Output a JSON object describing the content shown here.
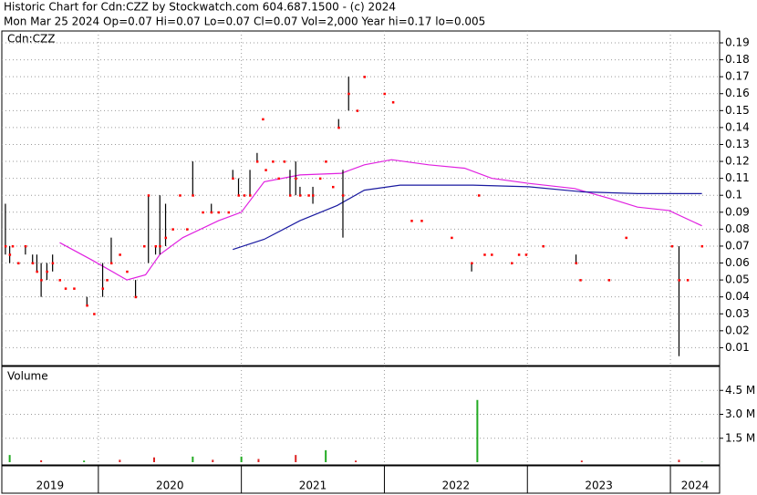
{
  "chart_data": {
    "type": "stock",
    "title": "Historic Chart for Cdn:CZZ by Stockwatch.com 604.687.1500 - (c) 2024",
    "subtitle": "Mon Mar 25 2024  Op=0.07  Hi=0.07  Lo=0.07  Cl=0.07  Vol=2,000  Year hi=0.17  lo=0.005",
    "symbol_label": "Cdn:CZZ",
    "volume_label": "Volume",
    "xlim": [
      2019.325,
      2024.344
    ],
    "xticks": [
      2020,
      2021,
      2022,
      2023,
      2024
    ],
    "year_labels": [
      2019,
      2020,
      2021,
      2022,
      2023,
      2024
    ],
    "ylim": [
      0,
      0.197
    ],
    "yticks": [
      0.01,
      0.02,
      0.03,
      0.04,
      0.05,
      0.06,
      0.07,
      0.08,
      0.09,
      0.1,
      0.11,
      0.12,
      0.13,
      0.14,
      0.15,
      0.16,
      0.17,
      0.18,
      0.19
    ],
    "grid": true,
    "price": {
      "range_color": "#000000",
      "close_color": "#ff0000",
      "x": [
        2019.35,
        2019.38,
        2019.4,
        2019.44,
        2019.49,
        2019.54,
        2019.57,
        2019.6,
        2019.64,
        2019.68,
        2019.73,
        2019.77,
        2019.83,
        2019.92,
        2019.97,
        2020.03,
        2020.06,
        2020.09,
        2020.15,
        2020.2,
        2020.26,
        2020.32,
        2020.35,
        2020.4,
        2020.43,
        2020.47,
        2020.52,
        2020.57,
        2020.62,
        2020.66,
        2020.73,
        2020.79,
        2020.84,
        2020.91,
        2020.94,
        2020.98,
        2021.02,
        2021.06,
        2021.11,
        2021.15,
        2021.17,
        2021.22,
        2021.26,
        2021.3,
        2021.34,
        2021.38,
        2021.41,
        2021.47,
        2021.5,
        2021.55,
        2021.59,
        2021.64,
        2021.68,
        2021.71,
        2021.75,
        2021.81,
        2021.86,
        2022.0,
        2022.06,
        2022.19,
        2022.26,
        2022.47,
        2022.61,
        2022.66,
        2022.7,
        2022.75,
        2022.89,
        2022.94,
        2022.99,
        2023.11,
        2023.34,
        2023.37,
        2023.57,
        2023.69,
        2024.01,
        2024.06,
        2024.12,
        2024.22
      ],
      "high": [
        0.095,
        0.07,
        null,
        null,
        0.07,
        0.065,
        0.065,
        0.06,
        0.06,
        0.065,
        null,
        null,
        null,
        0.04,
        null,
        0.06,
        null,
        0.075,
        null,
        null,
        0.05,
        null,
        0.1,
        0.07,
        0.1,
        0.095,
        null,
        null,
        null,
        0.12,
        null,
        0.095,
        null,
        null,
        0.115,
        0.11,
        null,
        0.115,
        0.125,
        null,
        null,
        null,
        null,
        null,
        0.115,
        0.12,
        0.105,
        null,
        0.105,
        null,
        null,
        null,
        0.145,
        0.115,
        0.17,
        null,
        null,
        null,
        null,
        null,
        null,
        null,
        0.06,
        null,
        null,
        null,
        null,
        null,
        null,
        null,
        0.065,
        null,
        null,
        null,
        null,
        0.07,
        null,
        null
      ],
      "low": [
        0.065,
        0.06,
        null,
        null,
        0.065,
        0.06,
        0.055,
        0.04,
        0.05,
        0.055,
        null,
        null,
        null,
        0.035,
        null,
        0.04,
        null,
        0.06,
        null,
        null,
        0.04,
        null,
        0.06,
        0.065,
        0.065,
        0.07,
        null,
        null,
        null,
        0.1,
        null,
        0.09,
        null,
        null,
        0.11,
        0.1,
        null,
        0.1,
        0.12,
        null,
        null,
        null,
        null,
        null,
        0.1,
        0.1,
        0.1,
        null,
        0.095,
        null,
        null,
        null,
        0.14,
        0.075,
        0.15,
        null,
        null,
        null,
        null,
        null,
        null,
        null,
        0.055,
        null,
        null,
        null,
        null,
        null,
        null,
        null,
        0.06,
        null,
        null,
        null,
        null,
        0.005,
        null,
        null
      ],
      "close": [
        0.07,
        0.065,
        0.07,
        0.06,
        0.07,
        0.06,
        0.055,
        0.05,
        0.055,
        0.06,
        0.05,
        0.045,
        0.045,
        0.035,
        0.03,
        0.045,
        0.05,
        0.06,
        0.065,
        0.055,
        0.04,
        0.07,
        0.1,
        0.07,
        0.07,
        0.075,
        0.08,
        0.1,
        0.08,
        0.1,
        0.09,
        0.09,
        0.09,
        0.09,
        0.11,
        0.1,
        0.1,
        0.1,
        0.12,
        0.145,
        0.115,
        0.12,
        0.11,
        0.12,
        0.1,
        0.11,
        0.1,
        0.1,
        0.1,
        0.11,
        0.12,
        0.105,
        0.14,
        0.1,
        0.16,
        0.15,
        0.17,
        0.16,
        0.155,
        0.085,
        0.085,
        0.075,
        0.06,
        0.1,
        0.065,
        0.065,
        0.06,
        0.065,
        0.065,
        0.07,
        0.06,
        0.05,
        0.05,
        0.075,
        0.07,
        0.05,
        0.05,
        0.07
      ]
    },
    "averages": [
      {
        "color": "#e020e0",
        "x": [
          2019.73,
          2019.95,
          2020.2,
          2020.33,
          2020.43,
          2020.59,
          2020.84,
          2021.0,
          2021.16,
          2021.41,
          2021.7,
          2021.86,
          2022.05,
          2022.31,
          2022.56,
          2022.75,
          2023.01,
          2023.33,
          2023.58,
          2023.77,
          2023.99,
          2024.22
        ],
        "values": [
          0.072,
          0.062,
          0.05,
          0.053,
          0.065,
          0.075,
          0.085,
          0.09,
          0.108,
          0.112,
          0.113,
          0.118,
          0.121,
          0.118,
          0.116,
          0.11,
          0.107,
          0.104,
          0.098,
          0.093,
          0.091,
          0.082
        ]
      },
      {
        "color": "#1a1aa0",
        "x": [
          2020.94,
          2021.16,
          2021.41,
          2021.67,
          2021.86,
          2022.11,
          2022.62,
          2023.01,
          2023.39,
          2023.77,
          2024.22
        ],
        "values": [
          0.068,
          0.074,
          0.085,
          0.094,
          0.103,
          0.106,
          0.106,
          0.105,
          0.102,
          0.101,
          0.101
        ]
      }
    ],
    "volume": {
      "ylim": [
        0,
        6000000
      ],
      "yticks": [
        {
          "value": 1500000,
          "label": "1.5 M"
        },
        {
          "value": 3000000,
          "label": "3.0 M"
        },
        {
          "value": 4500000,
          "label": "4.5 M"
        }
      ],
      "x": [
        2019.38,
        2019.6,
        2019.9,
        2020.15,
        2020.39,
        2020.66,
        2020.8,
        2021.0,
        2021.12,
        2021.38,
        2021.59,
        2021.8,
        2022.65,
        2023.38,
        2024.06,
        2024.22
      ],
      "values": [
        450000,
        120000,
        100000,
        150000,
        300000,
        350000,
        150000,
        350000,
        200000,
        450000,
        750000,
        100000,
        3900000,
        100000,
        150000,
        20000
      ],
      "colors": [
        "#22aa22",
        "#dd2222",
        "#22aa22",
        "#dd2222",
        "#dd2222",
        "#22aa22",
        "#dd2222",
        "#22aa22",
        "#dd2222",
        "#dd2222",
        "#22aa22",
        "#dd2222",
        "#22aa22",
        "#dd2222",
        "#dd2222",
        "#22aa22"
      ]
    }
  }
}
